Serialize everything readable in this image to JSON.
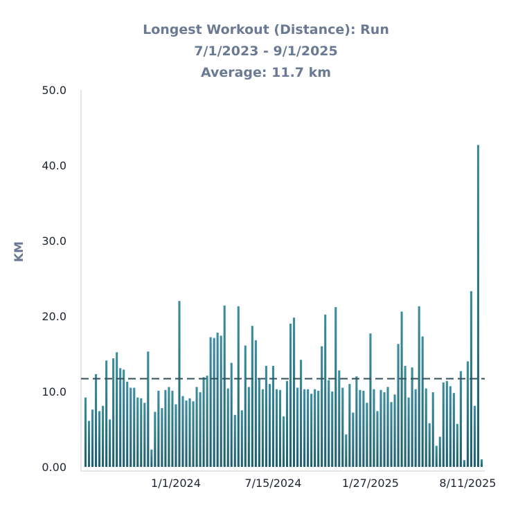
{
  "chart_data": {
    "type": "bar",
    "title": "Longest Workout (Distance): Run",
    "subtitle": "7/1/2023 - 9/1/2025",
    "average_label": "Average: 11.7 km",
    "average": 11.7,
    "xlabel": "",
    "ylabel": "KM",
    "ylim": [
      0,
      50
    ],
    "yticks": [
      0,
      10,
      20,
      30,
      40,
      50
    ],
    "ytick_labels": [
      "0.00",
      "10.0",
      "20.0",
      "30.0",
      "40.0",
      "50.0"
    ],
    "xtick_labels": [
      {
        "label": "1/1/2024",
        "index": 26
      },
      {
        "label": "7/15/2024",
        "index": 54
      },
      {
        "label": "1/27/2025",
        "index": 82
      },
      {
        "label": "8/11/2025",
        "index": 110
      }
    ],
    "grid": false,
    "bar_gradient": [
      "#1e5f6e",
      "#3c8ea0"
    ],
    "average_line_color": "#2f4f5a",
    "values": [
      9.2,
      6.1,
      7.6,
      12.3,
      7.4,
      8.1,
      14.1,
      6.3,
      14.4,
      15.2,
      13.1,
      12.9,
      11.3,
      10.5,
      10.5,
      9.2,
      9.1,
      8.5,
      15.3,
      2.3,
      7.3,
      10.1,
      7.8,
      10.2,
      10.6,
      10.1,
      8.3,
      22.0,
      9.4,
      8.8,
      9.1,
      8.7,
      10.6,
      9.9,
      11.9,
      12.1,
      17.2,
      17.1,
      17.8,
      17.4,
      21.4,
      10.4,
      13.8,
      6.9,
      21.3,
      7.5,
      16.1,
      10.6,
      18.7,
      16.8,
      11.7,
      10.3,
      13.4,
      11.0,
      13.4,
      10.3,
      10.2,
      6.7,
      11.4,
      19.0,
      19.8,
      10.5,
      14.2,
      10.3,
      10.3,
      9.7,
      10.3,
      10.1,
      16.0,
      20.2,
      11.5,
      10.0,
      21.2,
      12.8,
      10.5,
      4.3,
      11.0,
      7.2,
      12.0,
      10.2,
      10.1,
      8.5,
      17.7,
      10.3,
      7.4,
      10.2,
      9.9,
      10.6,
      8.6,
      9.6,
      16.3,
      20.6,
      13.4,
      9.2,
      13.2,
      10.3,
      21.3,
      17.3,
      10.4,
      5.8,
      9.9,
      2.8,
      4.0,
      11.2,
      11.4,
      10.7,
      9.8,
      5.7,
      12.7,
      0.9,
      14.0,
      23.3,
      8.1,
      42.7,
      1.0
    ]
  }
}
